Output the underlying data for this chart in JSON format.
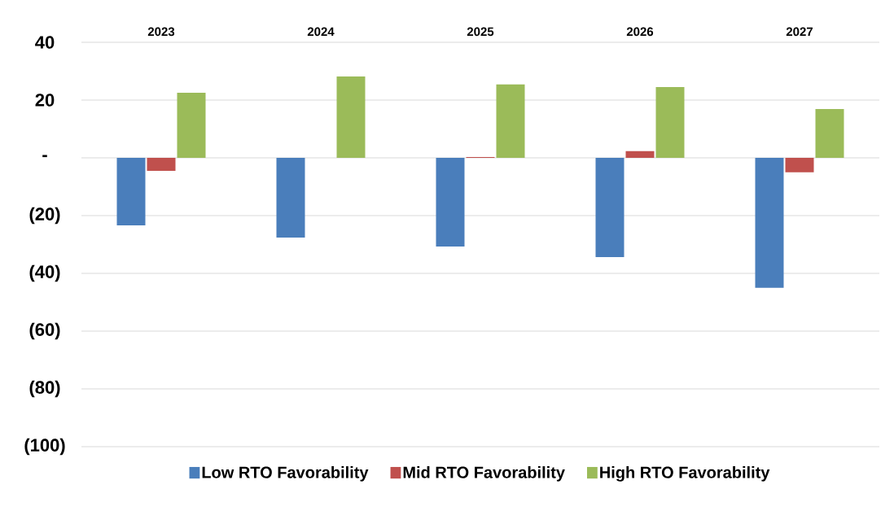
{
  "chart_data": {
    "type": "bar",
    "categories": [
      "2023",
      "2024",
      "2025",
      "2026",
      "2027"
    ],
    "series": [
      {
        "name": "Low RTO Favorability",
        "color": "#4a7ebb",
        "values": [
          -23.4,
          -27.6,
          -30.7,
          -34.4,
          -45.0
        ]
      },
      {
        "name": "Mid RTO Favorability",
        "color": "#c0504d",
        "values": [
          -4.5,
          0,
          0.3,
          2.3,
          -5.0
        ]
      },
      {
        "name": "High RTO Favorability",
        "color": "#9bbb59",
        "values": [
          22.5,
          28.2,
          25.4,
          24.5,
          16.9
        ]
      }
    ],
    "ylim": [
      -100,
      40
    ],
    "yticks": [
      40,
      20,
      {
        "value": 0,
        "label": "-"
      },
      {
        "value": -20,
        "label": "(20)"
      },
      {
        "value": -40,
        "label": "(40)"
      },
      {
        "value": -60,
        "label": "(60)"
      },
      {
        "value": -80,
        "label": "(80)"
      },
      {
        "value": -100,
        "label": "(100)"
      }
    ],
    "grid": "y",
    "legend": "bottom"
  }
}
